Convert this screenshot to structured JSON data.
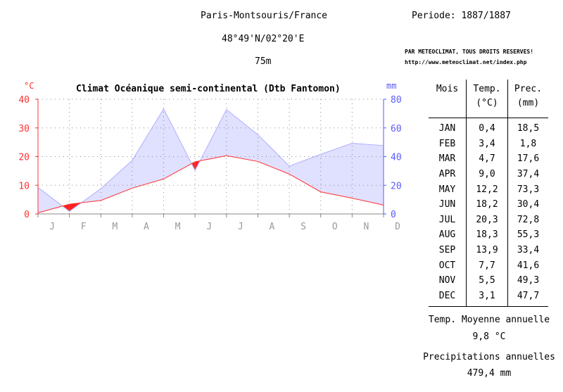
{
  "header": {
    "station": "Paris-Montsouris/France",
    "periode": "Periode: 1887/1887",
    "coordinates": "48°49'N/02°20'E",
    "altitude": "75m",
    "credit_line1": "PAR METEOCLIMAT, TOUS DROITS RESERVES!",
    "credit_line2": "http://www.meteoclimat.net/index.php"
  },
  "table": {
    "headers": {
      "month": "Mois",
      "temp": "Temp.",
      "temp_unit": "(°C)",
      "prec": "Prec.",
      "prec_unit": "(mm)"
    },
    "rows": [
      {
        "month": "JAN",
        "temp": "0,4",
        "prec": "18,5"
      },
      {
        "month": "FEB",
        "temp": "3,4",
        "prec": "1,8"
      },
      {
        "month": "MAR",
        "temp": "4,7",
        "prec": "17,6"
      },
      {
        "month": "APR",
        "temp": "9,0",
        "prec": "37,4"
      },
      {
        "month": "MAY",
        "temp": "12,2",
        "prec": "73,3"
      },
      {
        "month": "JUN",
        "temp": "18,2",
        "prec": "30,4"
      },
      {
        "month": "JUL",
        "temp": "20,3",
        "prec": "72,8"
      },
      {
        "month": "AUG",
        "temp": "18,3",
        "prec": "55,3"
      },
      {
        "month": "SEP",
        "temp": "13,9",
        "prec": "33,4"
      },
      {
        "month": "OCT",
        "temp": "7,7",
        "prec": "41,6"
      },
      {
        "month": "NOV",
        "temp": "5,5",
        "prec": "49,3"
      },
      {
        "month": "DEC",
        "temp": "3,1",
        "prec": "47,7"
      }
    ]
  },
  "annual": {
    "temp_label": "Temp. Moyenne annuelle",
    "temp_value": "9,8 °C",
    "prec_label": "Precipitations annuelles",
    "prec_value": "479,4 mm"
  },
  "colors": {
    "temperature": "#ff3030",
    "precipitation": "#5a5aff",
    "precip_fill": "#e0e0ff",
    "dry_fill": "#ff2020",
    "grid": "#888888"
  },
  "chart_data": {
    "type": "area",
    "title": "Climat Océanique semi-continental (Dtb Fantomon)",
    "categories": [
      "J",
      "F",
      "M",
      "A",
      "M",
      "J",
      "J",
      "A",
      "S",
      "O",
      "N",
      "D"
    ],
    "y_left_label": "°C",
    "y_right_label": "mm",
    "y_left_ticks": [
      "0",
      "10",
      "20",
      "30",
      "40"
    ],
    "y_right_ticks": [
      "0",
      "20",
      "40",
      "60",
      "80"
    ],
    "y_left_range": [
      0,
      40
    ],
    "y_right_range": [
      0,
      80
    ],
    "grid": true,
    "temperature": [
      0.4,
      3.4,
      4.7,
      9.0,
      12.2,
      18.2,
      20.3,
      18.3,
      13.9,
      7.7,
      5.5,
      3.1
    ],
    "precipitation": [
      18.5,
      1.8,
      17.6,
      37.4,
      73.3,
      30.4,
      72.8,
      55.3,
      33.4,
      41.6,
      49.3,
      47.7
    ]
  }
}
